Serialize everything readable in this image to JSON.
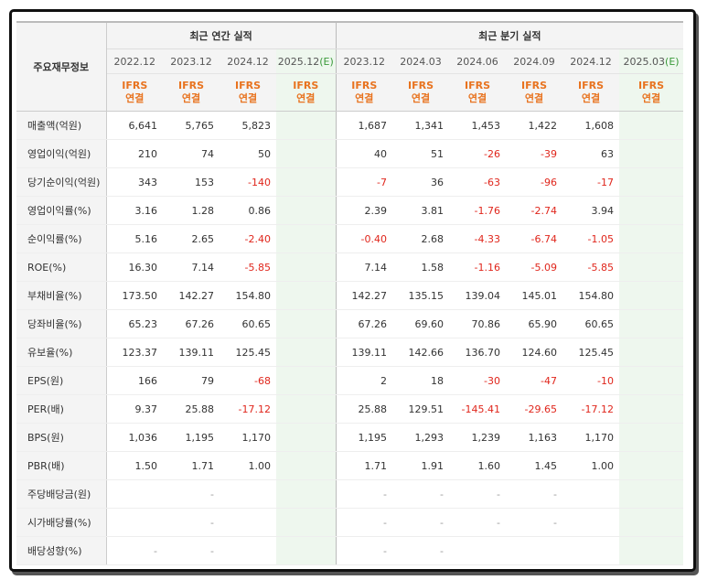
{
  "header": {
    "corner_label": "주요재무정보",
    "annual_title": "최근 연간 실적",
    "quarter_title": "최근 분기 실적"
  },
  "columns": [
    {
      "date": "2022.12",
      "est": "",
      "ifrs1": "IFRS",
      "ifrs2": "연결"
    },
    {
      "date": "2023.12",
      "est": "",
      "ifrs1": "IFRS",
      "ifrs2": "연결"
    },
    {
      "date": "2024.12",
      "est": "",
      "ifrs1": "IFRS",
      "ifrs2": "연결"
    },
    {
      "date": "2025.12",
      "est": "(E)",
      "ifrs1": "IFRS",
      "ifrs2": "연결"
    },
    {
      "date": "2023.12",
      "est": "",
      "ifrs1": "IFRS",
      "ifrs2": "연결"
    },
    {
      "date": "2024.03",
      "est": "",
      "ifrs1": "IFRS",
      "ifrs2": "연결"
    },
    {
      "date": "2024.06",
      "est": "",
      "ifrs1": "IFRS",
      "ifrs2": "연결"
    },
    {
      "date": "2024.09",
      "est": "",
      "ifrs1": "IFRS",
      "ifrs2": "연결"
    },
    {
      "date": "2024.12",
      "est": "",
      "ifrs1": "IFRS",
      "ifrs2": "연결"
    },
    {
      "date": "2025.03",
      "est": "(E)",
      "ifrs1": "IFRS",
      "ifrs2": "연결"
    }
  ],
  "rows": [
    {
      "label": "매출액(억원)",
      "values": [
        "6,641",
        "5,765",
        "5,823",
        "",
        "1,687",
        "1,341",
        "1,453",
        "1,422",
        "1,608",
        ""
      ]
    },
    {
      "label": "영업이익(억원)",
      "values": [
        "210",
        "74",
        "50",
        "",
        "40",
        "51",
        "-26",
        "-39",
        "63",
        ""
      ]
    },
    {
      "label": "당기순이익(억원)",
      "values": [
        "343",
        "153",
        "-140",
        "",
        "-7",
        "36",
        "-63",
        "-96",
        "-17",
        ""
      ]
    },
    {
      "label": "영업이익률(%)",
      "values": [
        "3.16",
        "1.28",
        "0.86",
        "",
        "2.39",
        "3.81",
        "-1.76",
        "-2.74",
        "3.94",
        ""
      ]
    },
    {
      "label": "순이익률(%)",
      "values": [
        "5.16",
        "2.65",
        "-2.40",
        "",
        "-0.40",
        "2.68",
        "-4.33",
        "-6.74",
        "-1.05",
        ""
      ]
    },
    {
      "label": "ROE(%)",
      "values": [
        "16.30",
        "7.14",
        "-5.85",
        "",
        "7.14",
        "1.58",
        "-1.16",
        "-5.09",
        "-5.85",
        ""
      ]
    },
    {
      "label": "부채비율(%)",
      "values": [
        "173.50",
        "142.27",
        "154.80",
        "",
        "142.27",
        "135.15",
        "139.04",
        "145.01",
        "154.80",
        ""
      ]
    },
    {
      "label": "당좌비율(%)",
      "values": [
        "65.23",
        "67.26",
        "60.65",
        "",
        "67.26",
        "69.60",
        "70.86",
        "65.90",
        "60.65",
        ""
      ]
    },
    {
      "label": "유보율(%)",
      "values": [
        "123.37",
        "139.11",
        "125.45",
        "",
        "139.11",
        "142.66",
        "136.70",
        "124.60",
        "125.45",
        ""
      ]
    },
    {
      "label": "EPS(원)",
      "values": [
        "166",
        "79",
        "-68",
        "",
        "2",
        "18",
        "-30",
        "-47",
        "-10",
        ""
      ]
    },
    {
      "label": "PER(배)",
      "values": [
        "9.37",
        "25.88",
        "-17.12",
        "",
        "25.88",
        "129.51",
        "-145.41",
        "-29.65",
        "-17.12",
        ""
      ]
    },
    {
      "label": "BPS(원)",
      "values": [
        "1,036",
        "1,195",
        "1,170",
        "",
        "1,195",
        "1,293",
        "1,239",
        "1,163",
        "1,170",
        ""
      ]
    },
    {
      "label": "PBR(배)",
      "values": [
        "1.50",
        "1.71",
        "1.00",
        "",
        "1.71",
        "1.91",
        "1.60",
        "1.45",
        "1.00",
        ""
      ]
    },
    {
      "label": "주당배당금(원)",
      "values": [
        "",
        "-",
        "",
        "",
        "-",
        "-",
        "-",
        "-",
        "",
        ""
      ]
    },
    {
      "label": "시가배당률(%)",
      "values": [
        "",
        "-",
        "",
        "",
        "-",
        "-",
        "-",
        "-",
        "",
        ""
      ]
    },
    {
      "label": "배당성향(%)",
      "values": [
        "-",
        "-",
        "",
        "",
        "-",
        "-",
        "",
        "",
        "",
        ""
      ]
    }
  ],
  "colors": {
    "negative": "#e0261c",
    "ifrs": "#e8731f",
    "estimate_bg": "#eef7ee",
    "estimate_text": "#3a9a3a"
  }
}
